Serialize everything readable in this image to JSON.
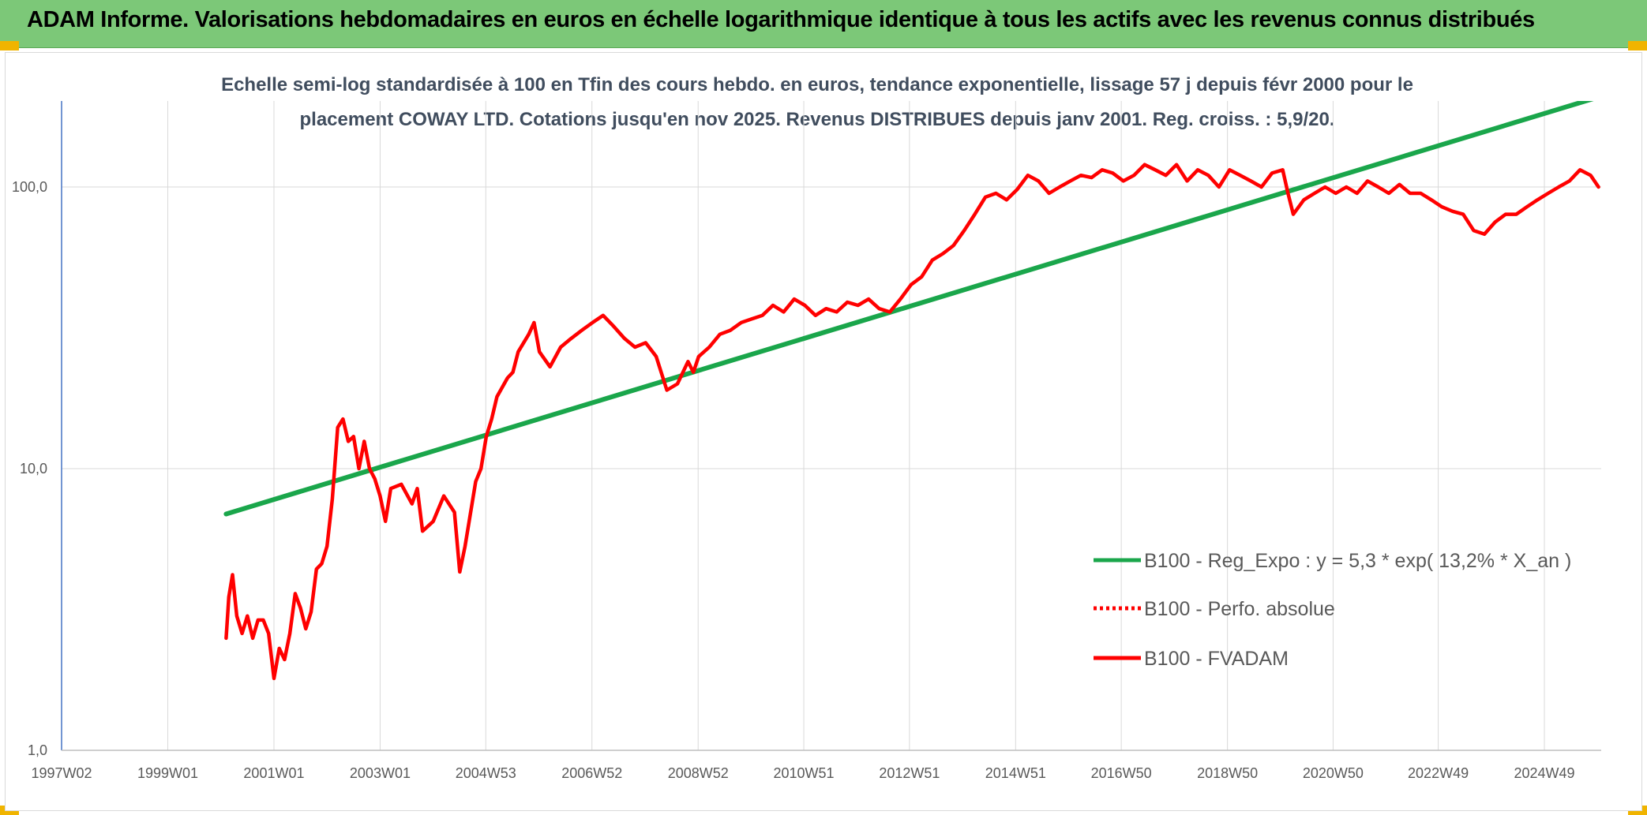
{
  "header": {
    "title": "ADAM Informe. Valorisations hebdomadaires en euros en échelle logarithmique identique à tous les actifs avec les revenus connus distribués"
  },
  "chart_data": {
    "type": "line",
    "subtitle_line1": "Echelle semi-log standardisée à 100 en Tfin des cours hebdo. en euros, tendance exponentielle, lissage 57 j depuis févr 2000 pour le",
    "subtitle_line2": "placement COWAY LTD. Cotations jusqu'en nov 2025. Revenus DISTRIBUES depuis janv 2001. Reg. croiss. : 5,9/20.",
    "y_scale": "log",
    "ylim": [
      1,
      200
    ],
    "y_ticks": [
      1,
      10,
      100
    ],
    "y_tick_labels": [
      "1,0",
      "10,0",
      "100,0"
    ],
    "xlim": [
      1997.0,
      2026.0
    ],
    "x_ticks": [
      1997.0,
      1999.0,
      2001.0,
      2003.0,
      2004.99,
      2006.99,
      2008.99,
      2010.98,
      2012.97,
      2014.97,
      2016.96,
      2018.96,
      2020.95,
      2022.93,
      2024.93
    ],
    "x_tick_labels": [
      "1997W02",
      "1999W01",
      "2001W01",
      "2003W01",
      "2004W53",
      "2006W52",
      "2008W52",
      "2010W51",
      "2012W51",
      "2014W51",
      "2016W50",
      "2018W50",
      "2020W50",
      "2022W49",
      "2024W49"
    ],
    "grid": "vertical",
    "legend_position": "bottom-right",
    "colors": {
      "regression": "#1aa64b",
      "absolute": "#ff0000",
      "fvadam": "#ff0000"
    },
    "series": [
      {
        "name": "B100 - Reg_Expo : y = 5,3 * exp( 13,2% *  X_an )",
        "style": "solid",
        "color": "#1aa64b",
        "x": [
          2000.1,
          2026.0
        ],
        "y": [
          6.9,
          210
        ]
      },
      {
        "name": "B100 - Perfo. absolue",
        "style": "dotted",
        "color": "#ff0000",
        "x": [],
        "y": []
      },
      {
        "name": "B100 - FVADAM",
        "style": "solid",
        "color": "#ff0000",
        "x": [
          2000.1,
          2000.15,
          2000.22,
          2000.3,
          2000.4,
          2000.5,
          2000.6,
          2000.7,
          2000.8,
          2000.9,
          2001.0,
          2001.1,
          2001.2,
          2001.3,
          2001.4,
          2001.5,
          2001.6,
          2001.7,
          2001.8,
          2001.9,
          2002.0,
          2002.1,
          2002.2,
          2002.3,
          2002.4,
          2002.5,
          2002.6,
          2002.7,
          2002.8,
          2002.9,
          2003.0,
          2003.1,
          2003.2,
          2003.4,
          2003.6,
          2003.7,
          2003.8,
          2004.0,
          2004.2,
          2004.4,
          2004.5,
          2004.6,
          2004.8,
          2004.9,
          2005.0,
          2005.1,
          2005.2,
          2005.4,
          2005.5,
          2005.6,
          2005.8,
          2005.9,
          2006.0,
          2006.2,
          2006.4,
          2006.6,
          2006.8,
          2007.0,
          2007.2,
          2007.4,
          2007.6,
          2007.8,
          2008.0,
          2008.2,
          2008.4,
          2008.6,
          2008.8,
          2008.9,
          2009.0,
          2009.2,
          2009.4,
          2009.6,
          2009.8,
          2010.0,
          2010.2,
          2010.4,
          2010.6,
          2010.8,
          2011.0,
          2011.2,
          2011.4,
          2011.6,
          2011.8,
          2012.0,
          2012.2,
          2012.4,
          2012.6,
          2012.8,
          2013.0,
          2013.2,
          2013.4,
          2013.6,
          2013.8,
          2014.0,
          2014.2,
          2014.4,
          2014.6,
          2014.8,
          2015.0,
          2015.2,
          2015.4,
          2015.6,
          2015.8,
          2016.0,
          2016.2,
          2016.4,
          2016.6,
          2016.8,
          2017.0,
          2017.2,
          2017.4,
          2017.6,
          2017.8,
          2018.0,
          2018.2,
          2018.4,
          2018.6,
          2018.8,
          2019.0,
          2019.2,
          2019.4,
          2019.6,
          2019.8,
          2020.0,
          2020.1,
          2020.2,
          2020.4,
          2020.6,
          2020.8,
          2021.0,
          2021.2,
          2021.4,
          2021.6,
          2021.8,
          2022.0,
          2022.2,
          2022.4,
          2022.6,
          2022.8,
          2023.0,
          2023.2,
          2023.4,
          2023.6,
          2023.8,
          2024.0,
          2024.2,
          2024.4,
          2024.6,
          2024.8,
          2025.0,
          2025.2,
          2025.4,
          2025.6,
          2025.8,
          2025.95
        ],
        "y": [
          2.5,
          3.5,
          4.2,
          3.0,
          2.6,
          3.0,
          2.5,
          2.9,
          2.9,
          2.6,
          1.8,
          2.3,
          2.1,
          2.6,
          3.6,
          3.2,
          2.7,
          3.1,
          4.4,
          4.6,
          5.3,
          7.8,
          14.0,
          15.0,
          12.5,
          13.0,
          10.0,
          12.5,
          10.0,
          9.2,
          8.0,
          6.5,
          8.5,
          8.8,
          7.5,
          8.5,
          6.0,
          6.5,
          8.0,
          7.0,
          4.3,
          5.3,
          9.0,
          10.0,
          13.0,
          15.0,
          18.0,
          21.0,
          22.0,
          26.0,
          30.0,
          33.0,
          26.0,
          23.0,
          27.0,
          29.0,
          31.0,
          33.0,
          35.0,
          32.0,
          29.0,
          27.0,
          28.0,
          25.0,
          19.0,
          20.0,
          24.0,
          22.0,
          25.0,
          27.0,
          30.0,
          31.0,
          33.0,
          34.0,
          35.0,
          38.0,
          36.0,
          40.0,
          38.0,
          35.0,
          37.0,
          36.0,
          39.0,
          38.0,
          40.0,
          37.0,
          36.0,
          40.0,
          45.0,
          48.0,
          55.0,
          58.0,
          62.0,
          70.0,
          80.0,
          92.0,
          95.0,
          90.0,
          98.0,
          110.0,
          105.0,
          95.0,
          100.0,
          105.0,
          110.0,
          108.0,
          115.0,
          112.0,
          105.0,
          110.0,
          120.0,
          115.0,
          110.0,
          120.0,
          105.0,
          115.0,
          110.0,
          100.0,
          115.0,
          110.0,
          105.0,
          100.0,
          112.0,
          115.0,
          95.0,
          80.0,
          90.0,
          95.0,
          100.0,
          95.0,
          100.0,
          95.0,
          105.0,
          100.0,
          95.0,
          102.0,
          95.0,
          95.0,
          90.0,
          85.0,
          82.0,
          80.0,
          70.0,
          68.0,
          75.0,
          80.0,
          80.0,
          85.0,
          90.0,
          95.0,
          100.0,
          105.0,
          115.0,
          110.0,
          100.0
        ]
      }
    ]
  }
}
